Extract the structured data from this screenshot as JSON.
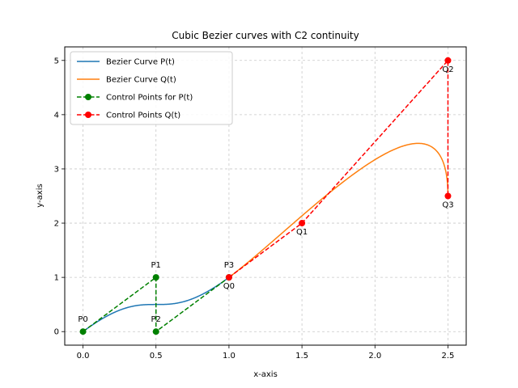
{
  "chart_data": {
    "type": "line",
    "title": "Cubic Bezier curves with C2 continuity",
    "xlabel": "x-axis",
    "ylabel": "y-axis",
    "xlim": [
      -0.125,
      2.625
    ],
    "ylim": [
      -0.25,
      5.25
    ],
    "xticks": [
      0.0,
      0.5,
      1.0,
      1.5,
      2.0,
      2.5
    ],
    "xtick_labels": [
      "0.0",
      "0.5",
      "1.0",
      "1.5",
      "2.0",
      "2.5"
    ],
    "yticks": [
      0,
      1,
      2,
      3,
      4,
      5
    ],
    "ytick_labels": [
      "0",
      "1",
      "2",
      "3",
      "4",
      "5"
    ],
    "grid": true,
    "legend_position": "top-left",
    "series": [
      {
        "name": "Bezier Curve P(t)",
        "kind": "bezier",
        "color": "#1f77b4",
        "control": [
          [
            0,
            0
          ],
          [
            0.5,
            1
          ],
          [
            0.5,
            0
          ],
          [
            1,
            1
          ]
        ]
      },
      {
        "name": "Bezier Curve Q(t)",
        "kind": "bezier",
        "color": "#ff7f0e",
        "control": [
          [
            1,
            1
          ],
          [
            1.5,
            2
          ],
          [
            2.5,
            5
          ],
          [
            2.5,
            2.5
          ]
        ]
      },
      {
        "name": "Control Points for P(t)",
        "kind": "control",
        "color": "#008000",
        "points": [
          [
            0,
            0
          ],
          [
            0.5,
            1
          ],
          [
            0.5,
            0
          ],
          [
            1,
            1
          ]
        ]
      },
      {
        "name": "Control Points Q(t)",
        "kind": "control",
        "color": "#ff0000",
        "points": [
          [
            1,
            1
          ],
          [
            1.5,
            2
          ],
          [
            2.5,
            5
          ],
          [
            2.5,
            2.5
          ]
        ]
      }
    ],
    "point_labels": [
      {
        "text": "P0",
        "x": 0,
        "y": 0,
        "pos": "above"
      },
      {
        "text": "P1",
        "x": 0.5,
        "y": 1,
        "pos": "above"
      },
      {
        "text": "P2",
        "x": 0.5,
        "y": 0,
        "pos": "above"
      },
      {
        "text": "P3",
        "x": 1,
        "y": 1,
        "pos": "above"
      },
      {
        "text": "Q0",
        "x": 1,
        "y": 1,
        "pos": "below"
      },
      {
        "text": "Q1",
        "x": 1.5,
        "y": 2,
        "pos": "below"
      },
      {
        "text": "Q2",
        "x": 2.5,
        "y": 5,
        "pos": "below"
      },
      {
        "text": "Q3",
        "x": 2.5,
        "y": 2.5,
        "pos": "below"
      }
    ]
  }
}
